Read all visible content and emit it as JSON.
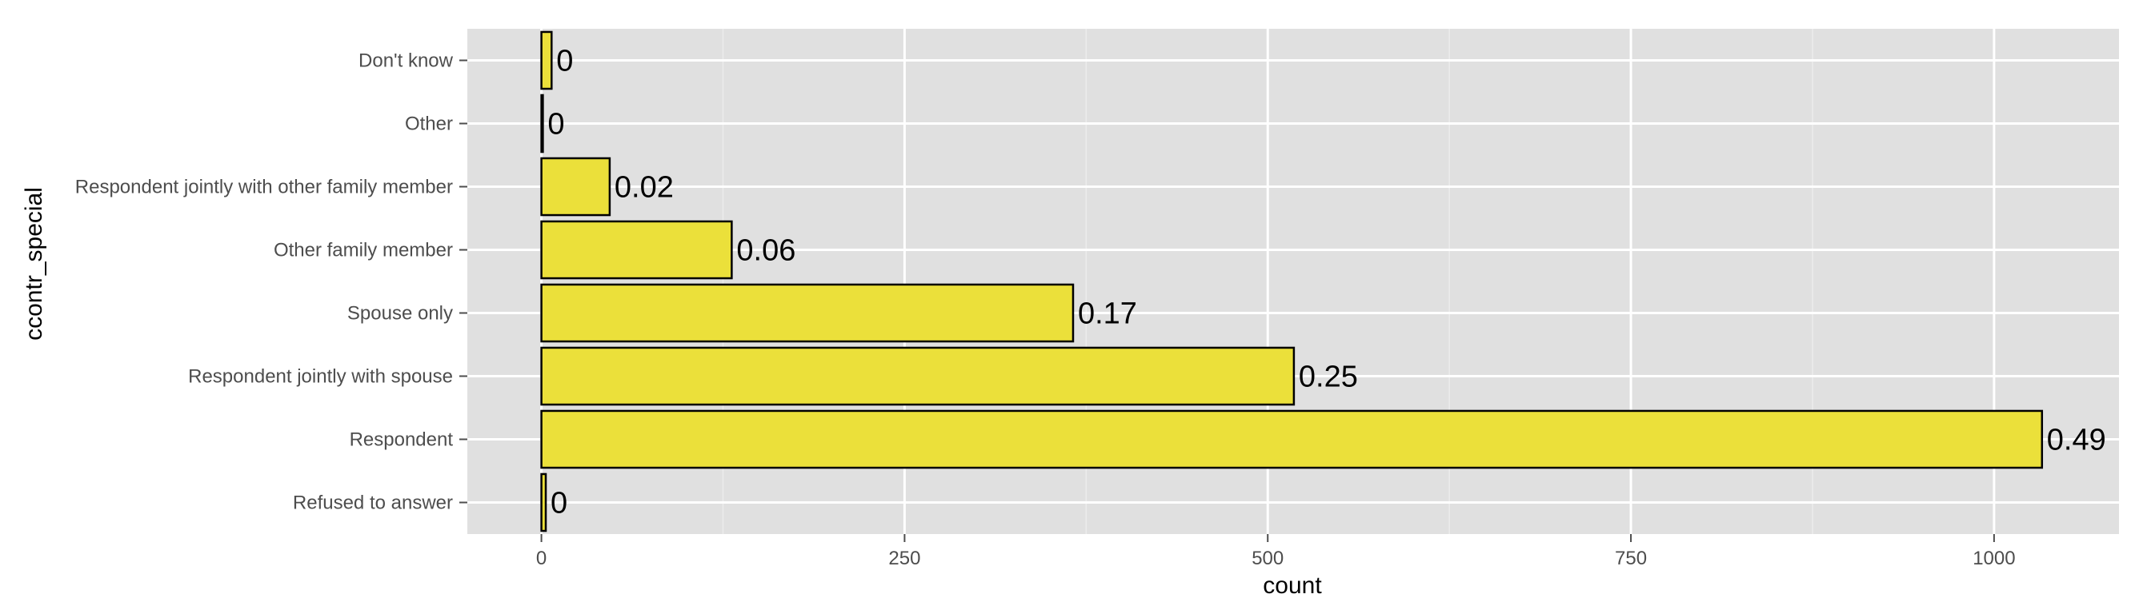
{
  "chart_data": {
    "type": "bar",
    "orientation": "horizontal",
    "title": "",
    "xlabel": "count",
    "ylabel": "ccontr_special",
    "categories": [
      "Refused to answer",
      "Respondent",
      "Respondent jointly with spouse",
      "Spouse only",
      "Other family member",
      "Respondent jointly with other family member",
      "Other",
      "Don't know"
    ],
    "values": [
      3,
      1033,
      518,
      366,
      131,
      47,
      1,
      7
    ],
    "data_labels": [
      "0",
      "0.49",
      "0.25",
      "0.17",
      "0.06",
      "0.02",
      "0",
      "0"
    ],
    "xlim": [
      -51,
      1086
    ],
    "xticks": [
      0,
      250,
      500,
      750,
      1000
    ],
    "xtick_labels": [
      "0",
      "250",
      "500",
      "750",
      "1000"
    ],
    "grid": true,
    "legend": "none",
    "colors": {
      "bar_fill": "#ebe03a",
      "bar_stroke": "#000000",
      "panel_bg": "#e0e0e0",
      "grid_major": "#ffffff",
      "grid_minor": "#ececec"
    }
  }
}
